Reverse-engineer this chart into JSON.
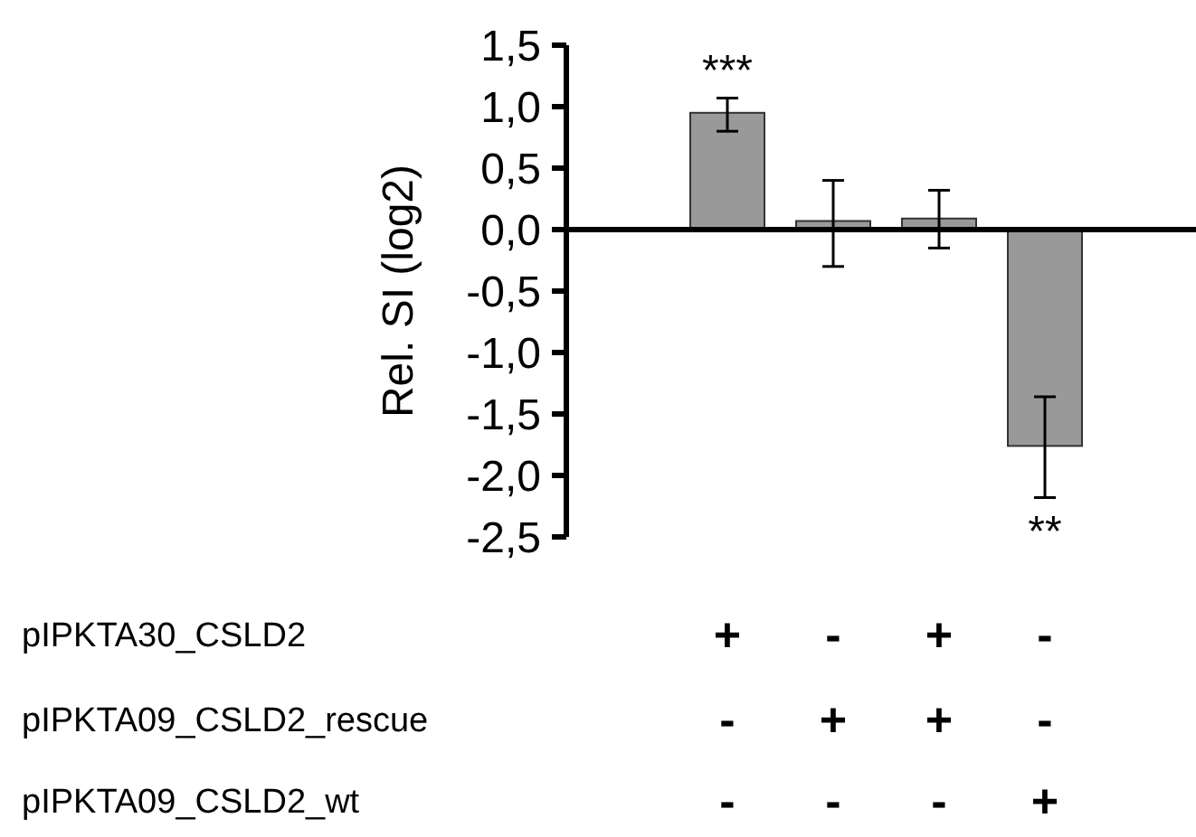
{
  "chart_data": {
    "type": "bar",
    "ylabel": "Rel. SI (log2)",
    "categories": [
      "+\n-\n-",
      "-\n+\n-",
      "+\n+\n-",
      "-\n-\n+"
    ],
    "values": [
      0.95,
      0.07,
      0.09,
      -1.76
    ],
    "errors": [
      [
        0.8,
        1.07
      ],
      [
        -0.3,
        0.4
      ],
      [
        -0.15,
        0.32
      ],
      [
        -2.18,
        -1.36
      ]
    ],
    "color": "#999999",
    "ylim": [
      -2.5,
      1.5
    ],
    "yticks": [
      {
        "value": -2.5,
        "label": "-2,5"
      },
      {
        "value": -2,
        "label": "-2,0"
      },
      {
        "value": -1.5,
        "label": "-1,5"
      },
      {
        "value": -1,
        "label": "-1,0"
      },
      {
        "value": -0.5,
        "label": "-0,5"
      },
      {
        "value": 0,
        "label": "0,0"
      },
      {
        "value": 0.5,
        "label": "0,5"
      },
      {
        "value": 1,
        "label": "1,0"
      },
      {
        "value": 1.5,
        "label": "1,5"
      }
    ],
    "annotations": [
      "***",
      "**",
      "pIPKTA30_CSLD2",
      "pIPKTA09_CSLD2_rescue",
      "pIPKTA09_CSLD2_wt"
    ]
  }
}
